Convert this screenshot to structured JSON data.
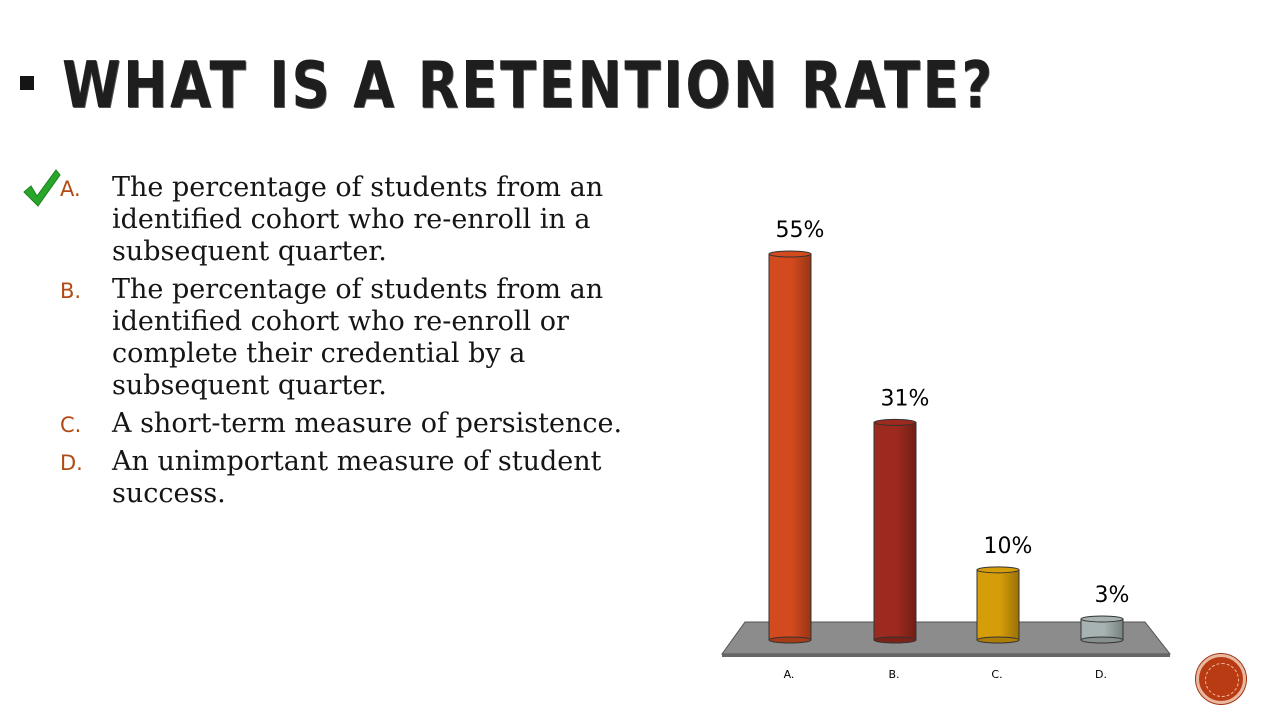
{
  "slide": {
    "title": "What is a retention rate?",
    "icons": {
      "title_bullet": "square-bullet-icon",
      "correct_answer": "checkmark-icon",
      "nav": "slide-nav-button-icon"
    },
    "colors": {
      "title": "#1e1e1e",
      "option_letter": "#b24a14",
      "checkmark": "#27a629",
      "nav_button": "#b83b14"
    },
    "correct_option_index": 0,
    "options": [
      {
        "letter": "A.",
        "text": "The percentage of students from an identified cohort who re-enroll in a subsequent quarter."
      },
      {
        "letter": "B.",
        "text": "The percentage of students from an identified cohort who re-enroll or complete their credential by a subsequent quarter."
      },
      {
        "letter": "C.",
        "text": "A short-term measure of persistence."
      },
      {
        "letter": "D.",
        "text": "An unimportant measure of student success."
      }
    ]
  },
  "chart_data": {
    "type": "bar",
    "title": "",
    "xlabel": "",
    "ylabel": "",
    "ylim": [
      0,
      60
    ],
    "grid": false,
    "legend": "none",
    "categories": [
      "A.",
      "B.",
      "C.",
      "D."
    ],
    "values": [
      55,
      31,
      10,
      3
    ],
    "value_labels": [
      "55%",
      "31%",
      "10%",
      "3%"
    ],
    "colors": [
      "#d24a1d",
      "#9c2a1e",
      "#d69d0a",
      "#a7b3b2"
    ],
    "floor_color": "#8c8c8c"
  }
}
